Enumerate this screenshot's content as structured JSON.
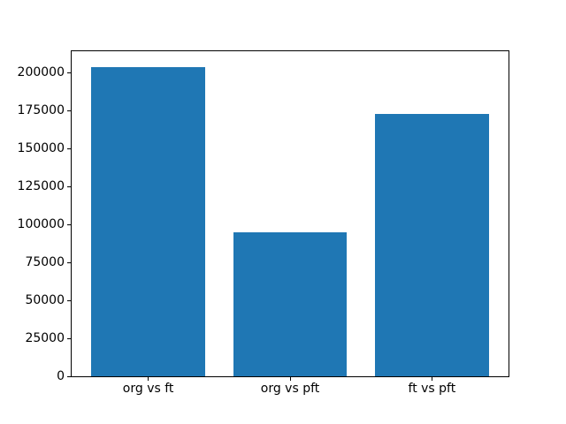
{
  "figure": {
    "background": "#ffffff",
    "frame_color": "#000000",
    "text_color": "#000000"
  },
  "chart_data": {
    "type": "bar",
    "title": "",
    "xlabel": "",
    "ylabel": "",
    "categories": [
      "org vs ft",
      "org vs pft",
      "ft vs pft"
    ],
    "values": [
      204000,
      95000,
      173000
    ],
    "bar_color": "#1f77b4",
    "bar_width_fraction": 0.8,
    "yticks": [
      0,
      25000,
      50000,
      75000,
      100000,
      125000,
      150000,
      175000,
      200000
    ],
    "ylim": [
      0,
      214200
    ],
    "xlim": [
      -0.54,
      2.54
    ],
    "grid": false,
    "legend": "none"
  }
}
